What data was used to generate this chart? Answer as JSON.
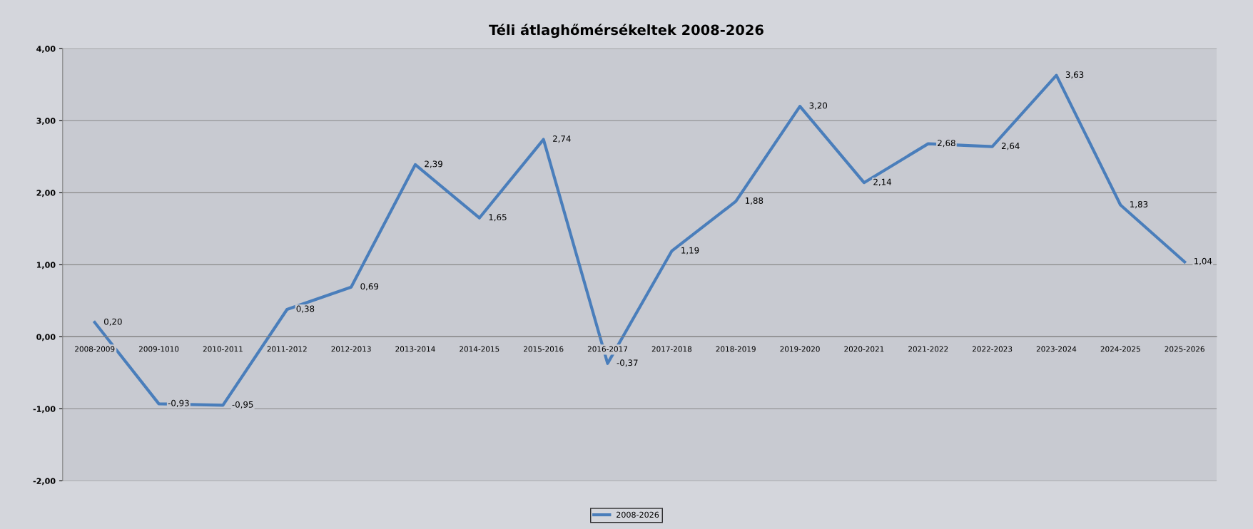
{
  "chart_data": {
    "type": "line",
    "title": "Téli átlaghőmérsékeltek 2008-2026",
    "categories": [
      "2008-2009",
      "2009-1010",
      "2010-2011",
      "2011-2012",
      "2012-2013",
      "2013-2014",
      "2014-2015",
      "2015-2016",
      "2016-2017",
      "2017-2018",
      "2018-2019",
      "2019-2020",
      "2020-2021",
      "2021-2022",
      "2022-2023",
      "2023-2024",
      "2024-2025",
      "2025-2026"
    ],
    "series": [
      {
        "name": "2008-2026",
        "color": "#4a7ebb",
        "values": [
          0.2,
          -0.93,
          -0.95,
          0.38,
          0.69,
          2.39,
          1.65,
          2.74,
          -0.37,
          1.19,
          1.88,
          3.2,
          2.14,
          2.68,
          2.64,
          3.63,
          1.83,
          1.04
        ],
        "value_labels": [
          "0,20",
          "-0,93",
          "-0,95",
          "0,38",
          "0,69",
          "2,39",
          "1,65",
          "2,74",
          "-0,37",
          "1,19",
          "1,88",
          "3,20",
          "2,14",
          "2,68",
          "2,64",
          "3,63",
          "1,83",
          "1,04"
        ]
      }
    ],
    "ylim": [
      -2,
      4
    ],
    "yticks": [
      {
        "value": -2,
        "label": "-2,00"
      },
      {
        "value": -1,
        "label": "-1,00"
      },
      {
        "value": 0,
        "label": "0,00"
      },
      {
        "value": 1,
        "label": "1,00"
      },
      {
        "value": 2,
        "label": "2,00"
      },
      {
        "value": 3,
        "label": "3,00"
      },
      {
        "value": 4,
        "label": "4,00"
      }
    ],
    "grid": "y",
    "legend": "bottom",
    "marker": "none",
    "line_style": "solid"
  }
}
